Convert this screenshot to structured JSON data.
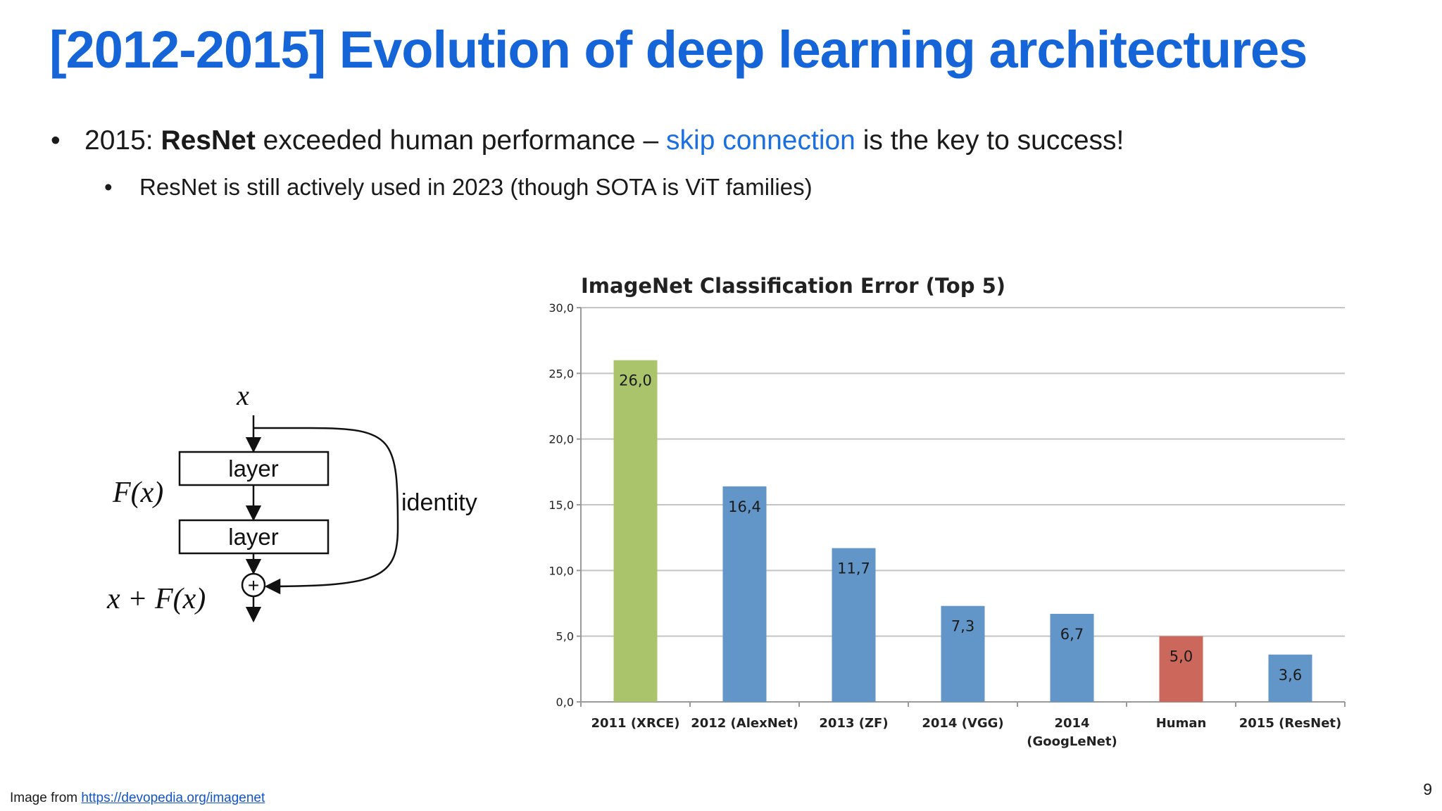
{
  "slide": {
    "title": "[2012-2015] Evolution of deep learning architectures",
    "bullet1": {
      "marker": "•",
      "lead": "2015: ",
      "bold": "ResNet",
      "mid": " exceeded human performance – ",
      "highlight": "skip connection",
      "tail": " is the key to success!"
    },
    "bullet2": {
      "marker": "•",
      "text": "ResNet is still actively used in 2023 (though SOTA is ViT families)"
    },
    "page_number": "9"
  },
  "diagram": {
    "input_label": "x",
    "layer1_label": "layer",
    "layer2_label": "layer",
    "function_label": "F(x)",
    "identity_label": "identity",
    "plus_symbol": "+",
    "output_label": "x + F(x)"
  },
  "chart_data": {
    "type": "bar",
    "title": "ImageNet Classification Error (Top 5)",
    "categories": [
      "2011 (XRCE)",
      "2012 (AlexNet)",
      "2013 (ZF)",
      "2014 (VGG)",
      "2014 (GoogLeNet)",
      "Human",
      "2015 (ResNet)"
    ],
    "category_lines": [
      [
        "2011 (XRCE)"
      ],
      [
        "2012 (AlexNet)"
      ],
      [
        "2013 (ZF)"
      ],
      [
        "2014 (VGG)"
      ],
      [
        "2014",
        "(GoogLeNet)"
      ],
      [
        "Human"
      ],
      [
        "2015 (ResNet)"
      ]
    ],
    "values": [
      26.0,
      16.4,
      11.7,
      7.3,
      6.7,
      5.0,
      3.6
    ],
    "value_labels": [
      "26,0",
      "16,4",
      "11,7",
      "7,3",
      "6,7",
      "5,0",
      "3,6"
    ],
    "colors": [
      "#a9c46b",
      "#6296c9",
      "#6296c9",
      "#6296c9",
      "#6296c9",
      "#cc675c",
      "#6296c9"
    ],
    "yticks": [
      0,
      5,
      10,
      15,
      20,
      25,
      30
    ],
    "ytick_labels": [
      "0,0",
      "5,0",
      "10,0",
      "15,0",
      "20,0",
      "25,0",
      "30,0"
    ],
    "ylim": [
      0,
      30
    ],
    "grid": true,
    "xlabel": "",
    "ylabel": ""
  },
  "footer": {
    "prefix": "Image from ",
    "link_text": "https://devopedia.org/imagenet"
  }
}
